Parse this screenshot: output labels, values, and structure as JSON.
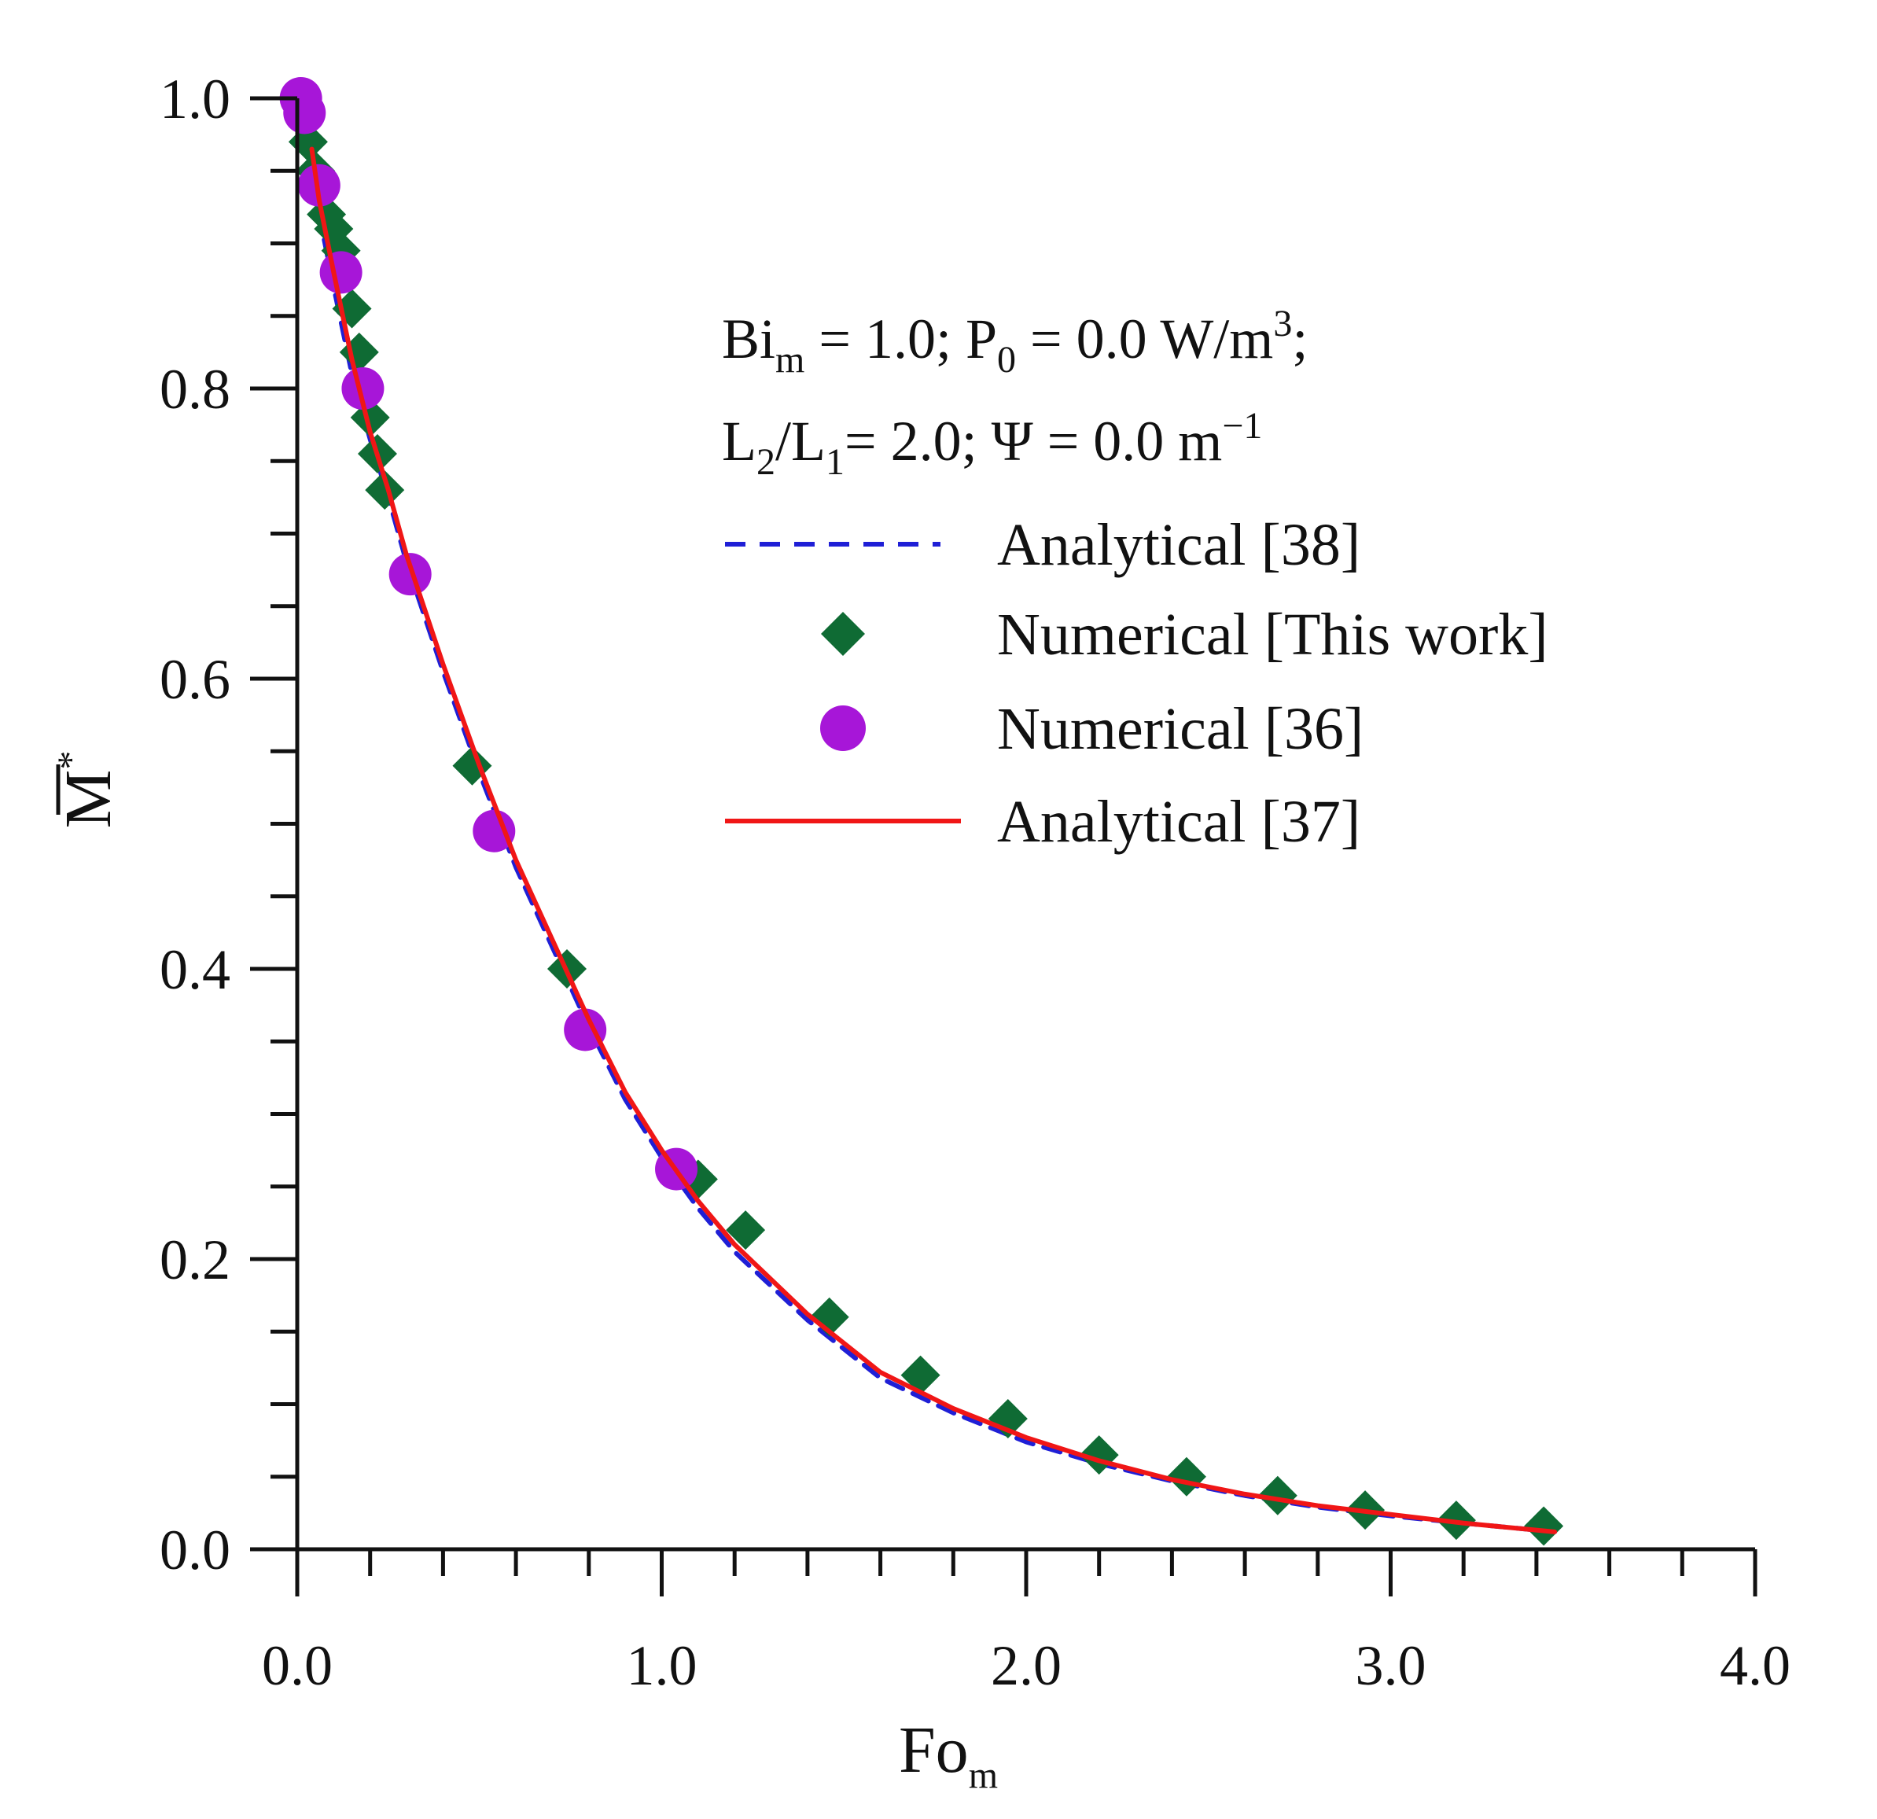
{
  "chart_data": {
    "type": "scatter",
    "title": "",
    "xlabel": {
      "main": "Fo",
      "sub": "m"
    },
    "ylabel": {
      "main": "M",
      "sup": "*",
      "overline": true
    },
    "xlim": [
      0.0,
      4.0
    ],
    "ylim": [
      0.0,
      1.0
    ],
    "x_major_ticks": [
      0.0,
      1.0,
      2.0,
      3.0,
      4.0
    ],
    "x_tick_labels": [
      "0.0",
      "1.0",
      "2.0",
      "3.0",
      "4.0"
    ],
    "x_minor_step": 0.2,
    "y_major_ticks": [
      0.0,
      0.2,
      0.4,
      0.6,
      0.8,
      1.0
    ],
    "y_tick_labels": [
      "0.0",
      "0.2",
      "0.4",
      "0.6",
      "0.8",
      "1.0"
    ],
    "y_minor_step": 0.05,
    "grid": false,
    "annotation": {
      "line1": {
        "a": "Bi",
        "a_sub": "m",
        "b": " = 1.0; P",
        "b_sub": "0",
        "c": " = 0.0 W/m",
        "c_sup": "3",
        "d": ";"
      },
      "line2": {
        "a": "L",
        "a_sub": "2",
        "b": "/L",
        "b_sub": "1",
        "c": "= 2.0; Ψ = 0.0 m",
        "c_sup": "−1"
      }
    },
    "legend_position": "upper-right",
    "series": [
      {
        "name": "Analytical [38]",
        "style": "dashed-line",
        "color": "#1f1fd6",
        "x": [
          0.03,
          0.06,
          0.1,
          0.15,
          0.2,
          0.25,
          0.3,
          0.4,
          0.5,
          0.6,
          0.7,
          0.8,
          0.9,
          1.0,
          1.1,
          1.2,
          1.4,
          1.6,
          1.8,
          2.0,
          2.2,
          2.4,
          2.6,
          2.8,
          3.0,
          3.2,
          3.45
        ],
        "y": [
          0.96,
          0.92,
          0.87,
          0.81,
          0.765,
          0.725,
          0.68,
          0.605,
          0.535,
          0.47,
          0.415,
          0.36,
          0.31,
          0.27,
          0.235,
          0.205,
          0.158,
          0.118,
          0.094,
          0.074,
          0.059,
          0.047,
          0.037,
          0.029,
          0.023,
          0.018,
          0.012
        ]
      },
      {
        "name": "Numerical [This work]",
        "style": "diamond",
        "color": "#0f6b34",
        "x": [
          0.03,
          0.05,
          0.08,
          0.1,
          0.12,
          0.15,
          0.17,
          0.2,
          0.22,
          0.24,
          0.48,
          0.74,
          1.1,
          1.23,
          1.46,
          1.71,
          1.95,
          2.2,
          2.44,
          2.69,
          2.93,
          3.18,
          3.42
        ],
        "y": [
          0.97,
          0.95,
          0.92,
          0.91,
          0.895,
          0.855,
          0.825,
          0.78,
          0.755,
          0.73,
          0.54,
          0.4,
          0.255,
          0.22,
          0.16,
          0.12,
          0.09,
          0.065,
          0.05,
          0.037,
          0.027,
          0.02,
          0.016
        ]
      },
      {
        "name": "Numerical [36]",
        "style": "circle",
        "color": "#a716d8",
        "x": [
          0.01,
          0.02,
          0.06,
          0.12,
          0.18,
          0.31,
          0.54,
          0.79,
          1.04
        ],
        "y": [
          1.0,
          0.99,
          0.94,
          0.88,
          0.8,
          0.672,
          0.495,
          0.358,
          0.262
        ]
      },
      {
        "name": "Analytical [37]",
        "style": "solid-line",
        "color": "#f01616",
        "x": [
          0.04,
          0.06,
          0.1,
          0.15,
          0.2,
          0.25,
          0.3,
          0.4,
          0.5,
          0.6,
          0.7,
          0.8,
          0.9,
          1.0,
          1.1,
          1.2,
          1.4,
          1.6,
          1.8,
          2.0,
          2.2,
          2.4,
          2.6,
          2.8,
          3.0,
          3.2,
          3.45
        ],
        "y": [
          0.965,
          0.93,
          0.88,
          0.82,
          0.77,
          0.73,
          0.685,
          0.61,
          0.54,
          0.475,
          0.42,
          0.365,
          0.315,
          0.275,
          0.24,
          0.21,
          0.162,
          0.122,
          0.097,
          0.077,
          0.061,
          0.048,
          0.038,
          0.03,
          0.024,
          0.018,
          0.012
        ]
      }
    ]
  }
}
